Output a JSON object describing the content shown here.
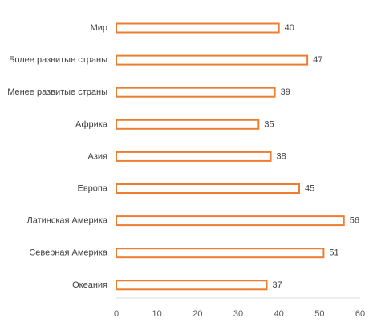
{
  "chart_data": {
    "type": "bar",
    "orientation": "horizontal",
    "categories": [
      "Мир",
      "Более развитые страны",
      "Менее развитые страны",
      "Африка",
      "Азия",
      "Европа",
      "Латинская Америка",
      "Северная Америка",
      "Океания"
    ],
    "values": [
      40,
      47,
      39,
      35,
      38,
      45,
      56,
      51,
      37
    ],
    "xlim": [
      0,
      60
    ],
    "xticks": [
      0,
      10,
      20,
      30,
      40,
      50,
      60
    ],
    "grid": false,
    "legend": "none",
    "data_labels": true,
    "bar_outline_color": "#ED7D31",
    "bar_fill_color": "#FFFFFF",
    "axis_color": "#D9D9D9"
  }
}
